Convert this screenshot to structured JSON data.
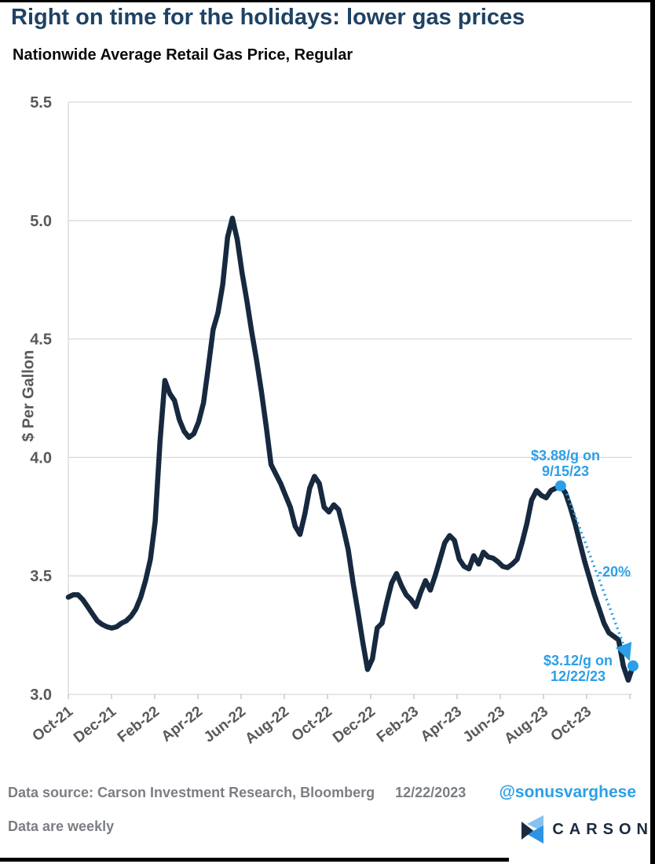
{
  "header": {
    "title": "Right on time for the holidays: lower gas prices",
    "subtitle": "Nationwide Average Retail Gas Price, Regular"
  },
  "chart_data": {
    "type": "line",
    "title": "Right on time for the holidays: lower gas prices",
    "subtitle": "Nationwide Average Retail Gas Price, Regular",
    "ylabel": "$ Per Gallon",
    "ylim": [
      3.0,
      5.5
    ],
    "yticks": [
      3.0,
      3.5,
      4.0,
      4.5,
      5.0,
      5.5
    ],
    "xtick_labels": [
      "Oct-21",
      "Dec-21",
      "Feb-22",
      "Apr-22",
      "Jun-22",
      "Aug-22",
      "Oct-22",
      "Dec-22",
      "Feb-23",
      "Apr-23",
      "Jun-23",
      "Aug-23",
      "Oct-23"
    ],
    "grid": "horizontal only",
    "legend": "none",
    "frequency": "weekly",
    "x_end_date": "12/22/2023",
    "series": [
      {
        "name": "Nationwide Average Retail Gas Price, Regular ($ per gallon, weekly)",
        "values": [
          3.41,
          3.42,
          3.42,
          3.4,
          3.37,
          3.34,
          3.31,
          3.295,
          3.285,
          3.28,
          3.285,
          3.3,
          3.31,
          3.33,
          3.36,
          3.41,
          3.48,
          3.57,
          3.73,
          4.07,
          4.325,
          4.27,
          4.24,
          4.16,
          4.11,
          4.085,
          4.1,
          4.15,
          4.23,
          4.38,
          4.54,
          4.61,
          4.73,
          4.93,
          5.01,
          4.92,
          4.78,
          4.66,
          4.53,
          4.41,
          4.28,
          4.13,
          3.97,
          3.93,
          3.89,
          3.84,
          3.79,
          3.71,
          3.675,
          3.76,
          3.87,
          3.92,
          3.89,
          3.79,
          3.77,
          3.8,
          3.78,
          3.7,
          3.61,
          3.47,
          3.35,
          3.22,
          3.105,
          3.15,
          3.28,
          3.3,
          3.39,
          3.47,
          3.51,
          3.46,
          3.42,
          3.4,
          3.37,
          3.43,
          3.48,
          3.44,
          3.5,
          3.57,
          3.64,
          3.67,
          3.65,
          3.57,
          3.54,
          3.53,
          3.585,
          3.55,
          3.6,
          3.58,
          3.575,
          3.56,
          3.54,
          3.535,
          3.55,
          3.57,
          3.64,
          3.72,
          3.82,
          3.86,
          3.84,
          3.83,
          3.86,
          3.87,
          3.88,
          3.85,
          3.79,
          3.72,
          3.64,
          3.56,
          3.49,
          3.42,
          3.36,
          3.3,
          3.26,
          3.245,
          3.23,
          3.12,
          3.06,
          3.12
        ]
      }
    ],
    "markers": [
      {
        "index": 102,
        "value": 3.88,
        "date": "9/15/23"
      },
      {
        "index": 117,
        "value": 3.12,
        "date": "12/22/23"
      }
    ],
    "change_annotation": "-20%"
  },
  "annotations": {
    "peak_line1": "$3.88/g on",
    "peak_line2": "9/15/23",
    "end_line1": "$3.12/g on",
    "end_line2": "12/22/23",
    "pct_change": "-20%"
  },
  "footer": {
    "source": "Data source: Carson Investment Research, Bloomberg",
    "date": "12/22/2023",
    "handle": "@sonusvarghese",
    "note": "Data are weekly",
    "logo_text": "CARSON"
  },
  "colors": {
    "title": "#1E4264",
    "line": "#16293E",
    "accent": "#2B9FE8",
    "axis_text": "#595959",
    "tick_mark": "#BFBFBF",
    "gridline": "#D9D9D9",
    "footer_text": "#7B7E83",
    "logo_pale_blue": "#85C2EF",
    "logo_bright_blue": "#2E93E6",
    "logo_navy": "#1B2B3F"
  }
}
